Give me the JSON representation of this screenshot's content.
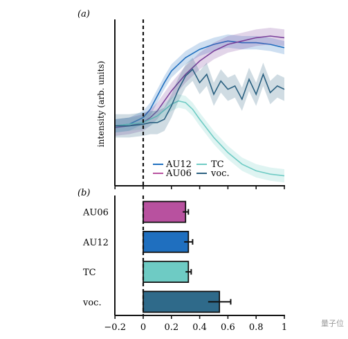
{
  "colors": {
    "AU12": "#1f6fbf",
    "AU06": "#7a3f9a",
    "TC": "#6ecbc4",
    "voc": "#2a6080",
    "bar_AU06": "#b8519f",
    "bar_AU12": "#1f6fbf",
    "bar_TC": "#6ecbc4",
    "bar_voc": "#2f6a8a"
  },
  "watermark": "量子位",
  "chart_data": [
    {
      "panel_label": "(a)",
      "type": "line",
      "ylabel": "intensity (arb. units)",
      "xlim": [
        -0.2,
        1.0
      ],
      "ylim": [
        0,
        1
      ],
      "vline_x": 0,
      "legend": {
        "placement": "bottom-right",
        "columns": 2,
        "entries": [
          "AU12",
          "AU06",
          "TC",
          "voc."
        ]
      },
      "series": [
        {
          "name": "AU12",
          "color_key": "AU12",
          "x": [
            -0.2,
            -0.1,
            0,
            0.05,
            0.1,
            0.15,
            0.2,
            0.3,
            0.4,
            0.5,
            0.6,
            0.7,
            0.8,
            0.9,
            1.0
          ],
          "y": [
            0.36,
            0.37,
            0.41,
            0.46,
            0.54,
            0.62,
            0.69,
            0.77,
            0.82,
            0.85,
            0.87,
            0.86,
            0.86,
            0.85,
            0.83
          ],
          "band": 0.04
        },
        {
          "name": "AU06",
          "color_key": "AU06",
          "x": [
            -0.2,
            -0.1,
            0,
            0.05,
            0.1,
            0.15,
            0.2,
            0.3,
            0.4,
            0.5,
            0.6,
            0.7,
            0.8,
            0.9,
            1.0
          ],
          "y": [
            0.35,
            0.36,
            0.38,
            0.41,
            0.45,
            0.51,
            0.57,
            0.67,
            0.75,
            0.81,
            0.85,
            0.87,
            0.89,
            0.9,
            0.89
          ],
          "band": 0.05
        },
        {
          "name": "TC",
          "color_key": "TC",
          "x": [
            -0.2,
            -0.1,
            0,
            0.1,
            0.2,
            0.25,
            0.3,
            0.35,
            0.4,
            0.5,
            0.6,
            0.7,
            0.8,
            0.9,
            1.0
          ],
          "y": [
            0.36,
            0.37,
            0.38,
            0.42,
            0.49,
            0.51,
            0.5,
            0.46,
            0.4,
            0.29,
            0.2,
            0.13,
            0.09,
            0.07,
            0.06
          ],
          "band": 0.04
        },
        {
          "name": "voc.",
          "color_key": "voc",
          "x": [
            -0.2,
            -0.1,
            0,
            0.05,
            0.1,
            0.15,
            0.2,
            0.25,
            0.3,
            0.35,
            0.4,
            0.45,
            0.5,
            0.55,
            0.6,
            0.65,
            0.7,
            0.75,
            0.8,
            0.85,
            0.9,
            0.95,
            1.0
          ],
          "y": [
            0.36,
            0.36,
            0.37,
            0.38,
            0.38,
            0.4,
            0.48,
            0.58,
            0.66,
            0.7,
            0.62,
            0.67,
            0.55,
            0.63,
            0.58,
            0.6,
            0.52,
            0.64,
            0.55,
            0.67,
            0.56,
            0.6,
            0.58
          ],
          "band": 0.07
        }
      ]
    },
    {
      "panel_label": "(b)",
      "type": "bar",
      "orientation": "horizontal",
      "categories": [
        "AU06",
        "AU12",
        "TC",
        "voc."
      ],
      "values": [
        0.3,
        0.32,
        0.32,
        0.54
      ],
      "errors": [
        0.02,
        0.03,
        0.02,
        0.08
      ],
      "color_keys": [
        "bar_AU06",
        "bar_AU12",
        "bar_TC",
        "bar_voc"
      ],
      "xlim": [
        -0.25,
        1.0
      ],
      "ticks": [
        -0.2,
        0,
        0.2,
        0.4,
        0.6,
        0.8,
        1.0
      ],
      "tick_labels": [
        "−0.2",
        "0",
        "0.2",
        "0.4",
        "0.6",
        "0.8",
        "1"
      ],
      "vline_x": 0
    }
  ]
}
